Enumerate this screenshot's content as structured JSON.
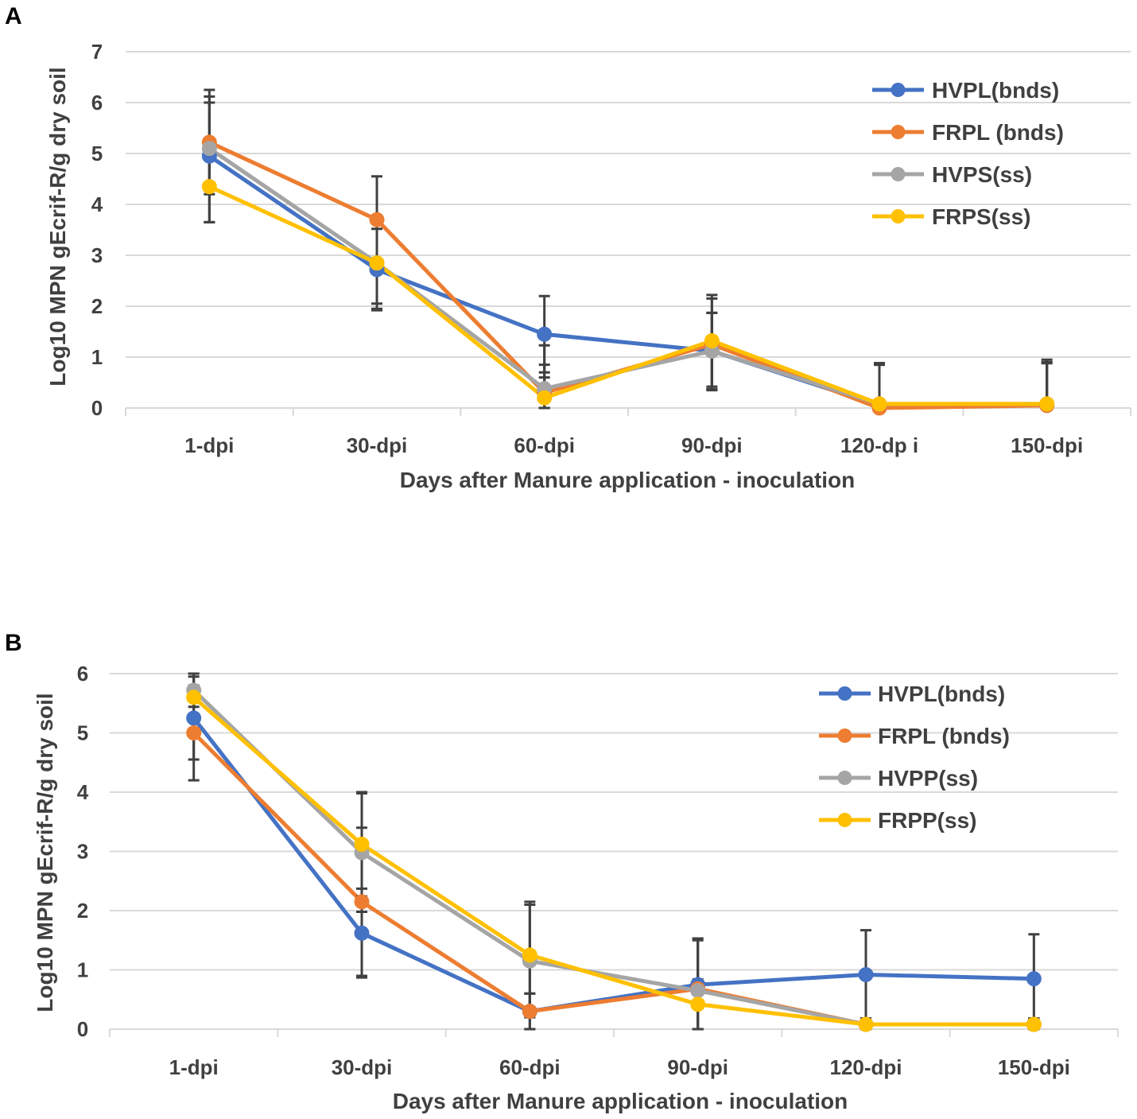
{
  "chart_data": [
    {
      "panel": "A",
      "type": "line",
      "categories": [
        "1-dpi",
        "30-dpi",
        "60-dpi",
        "90-dpi",
        "120-dp i",
        "150-dpi"
      ],
      "ylim": [
        0,
        7
      ],
      "yticks": [
        0,
        1,
        2,
        3,
        4,
        5,
        6,
        7
      ],
      "xlabel": "Days after Manure application - inoculation",
      "ylabel": "Log10 MPN gEcrif-R/g dry soil",
      "legend_position": "top-right",
      "series": [
        {
          "name": "HVPL(bnds)",
          "color": "#4472C4",
          "values": [
            4.95,
            2.72,
            1.45,
            1.12,
            0.05,
            0.05
          ],
          "errors": [
            1.3,
            0.8,
            0.75,
            0.75,
            0.8,
            0.85
          ]
        },
        {
          "name": "FRPL (bnds)",
          "color": "#ED7D31",
          "values": [
            5.22,
            3.7,
            0.3,
            1.25,
            0.0,
            0.05
          ],
          "errors": [
            0.9,
            0.85,
            0.55,
            0.9,
            0.85,
            0.9
          ]
        },
        {
          "name": " HVPS(ss)",
          "color": "#A5A5A5",
          "values": [
            5.1,
            2.85,
            0.38,
            1.12,
            0.08,
            0.08
          ],
          "errors": [
            0.9,
            0.9,
            0.85,
            0.75,
            0.8,
            0.8
          ]
        },
        {
          "name": "FRPS(ss)",
          "color": "#FFC000",
          "values": [
            4.35,
            2.85,
            0.2,
            1.32,
            0.08,
            0.08
          ],
          "errors": [
            0.7,
            0.8,
            0.4,
            0.9,
            0.8,
            0.8
          ]
        }
      ]
    },
    {
      "panel": "B",
      "type": "line",
      "categories": [
        "1-dpi",
        "30-dpi",
        "60-dpi",
        "90-dpi",
        "120-dpi",
        "150-dpi"
      ],
      "ylim": [
        0,
        6
      ],
      "yticks": [
        0,
        1,
        2,
        3,
        4,
        5,
        6
      ],
      "xlabel": "Days after Manure application - inoculation",
      "ylabel": "Log10 MPN gEcrif-R/g dry soil",
      "legend_position": "top-right",
      "series": [
        {
          "name": "HVPL(bnds)",
          "color": "#4472C4",
          "values": [
            5.25,
            1.62,
            0.3,
            0.75,
            0.92,
            0.85
          ],
          "errors": [
            0.7,
            0.75,
            0.3,
            0.75,
            0.75,
            0.75
          ]
        },
        {
          "name": "FRPL (bnds)",
          "color": "#ED7D31",
          "values": [
            5.0,
            2.15,
            0.3,
            0.68,
            0.08,
            0.08
          ],
          "errors": [
            0.8,
            1.25,
            0.3,
            0.85,
            0.1,
            0.1
          ]
        },
        {
          "name": "HVPP(ss)",
          "color": "#A5A5A5",
          "values": [
            5.72,
            2.98,
            1.15,
            0.65,
            0.08,
            0.08
          ],
          "errors": [
            0.28,
            1.0,
            0.95,
            0.88,
            0.1,
            0.1
          ]
        },
        {
          "name": "FRPP(ss)",
          "color": "#FFC000",
          "values": [
            5.6,
            3.12,
            1.25,
            0.42,
            0.08,
            0.08
          ],
          "errors": [
            0.4,
            0.88,
            0.9,
            0.42,
            0.1,
            0.1
          ]
        }
      ]
    }
  ]
}
